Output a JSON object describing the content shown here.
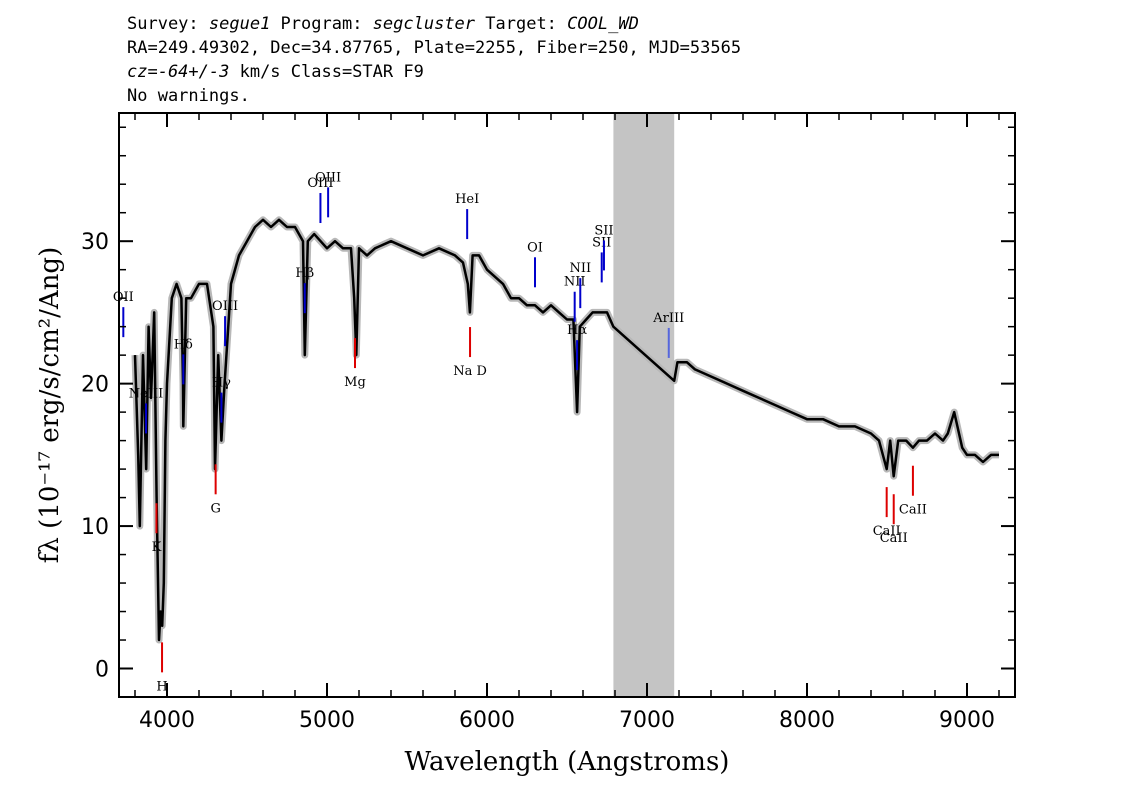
{
  "header": {
    "line1": {
      "survey_label": "Survey: ",
      "survey": "segue1",
      "program_label": " Program: ",
      "program": "segcluster",
      "target_label": " Target: ",
      "target": "COOL_WD"
    },
    "line2": "RA=249.49302, Dec=34.87765, Plate=2255, Fiber=250, MJD=53565",
    "line3": {
      "cz": "cz=-64+/-3",
      "rest": " km/s Class=STAR F9"
    },
    "line4": "No warnings."
  },
  "chart_data": {
    "type": "line",
    "xlabel": "Wavelength (Angstroms)",
    "ylabel": "fλ (10⁻¹⁷ erg/s/cm²/Ang)",
    "xlim": [
      3700,
      9300
    ],
    "ylim": [
      -2,
      39
    ],
    "xticks": [
      4000,
      5000,
      6000,
      7000,
      8000,
      9000
    ],
    "xtick_labels": [
      "4000",
      "5000",
      "6000",
      "7000",
      "8000",
      "9000"
    ],
    "yticks": [
      0,
      10,
      20,
      30
    ],
    "ytick_labels": [
      "0",
      "10",
      "20",
      "30"
    ],
    "masked_region": [
      6790,
      7170
    ],
    "colors": {
      "spectrum": "#000000",
      "noise": "#b8b8b8",
      "mask": "#c4c4c4",
      "emission": "#0000cc",
      "absorption": "#dd0000",
      "arIII": "#5566dd"
    },
    "series": [
      {
        "kind": "spectrum",
        "x": [
          3800,
          3820,
          3830,
          3850,
          3870,
          3885,
          3900,
          3920,
          3935,
          3950,
          3960,
          3970,
          3980,
          3990,
          4000,
          4030,
          4060,
          4090,
          4100,
          4102,
          4120,
          4150,
          4200,
          4250,
          4290,
          4300,
          4320,
          4340,
          4360,
          4400,
          4450,
          4500,
          4550,
          4600,
          4650,
          4700,
          4750,
          4800,
          4850,
          4861,
          4880,
          4920,
          5000,
          5050,
          5100,
          5150,
          5170,
          5183,
          5200,
          5250,
          5300,
          5400,
          5500,
          5600,
          5700,
          5800,
          5850,
          5880,
          5893,
          5910,
          5950,
          6000,
          6050,
          6100,
          6150,
          6200,
          6250,
          6300,
          6350,
          6400,
          6450,
          6500,
          6540,
          6563,
          6580,
          6620,
          6660,
          6700,
          6750,
          6790,
          7170,
          7190,
          7250,
          7300,
          7400,
          7500,
          7600,
          7700,
          7800,
          7900,
          8000,
          8100,
          8200,
          8300,
          8400,
          8450,
          8498,
          8520,
          8542,
          8570,
          8620,
          8662,
          8700,
          8750,
          8800,
          8850,
          8880,
          8920,
          8970,
          9000,
          9050,
          9100,
          9150,
          9200
        ],
        "y": [
          22,
          15,
          10,
          22,
          14,
          24,
          19,
          25,
          12,
          2,
          4,
          3,
          6,
          16,
          20,
          26,
          27,
          26,
          20,
          17,
          26,
          26,
          27,
          27,
          24,
          14,
          22,
          16,
          20,
          27,
          29,
          30,
          31,
          31.5,
          31,
          31.5,
          31,
          31,
          30,
          22,
          30,
          30.5,
          29.5,
          30,
          29.5,
          29.5,
          26,
          22,
          29.5,
          29,
          29.5,
          30,
          29.5,
          29,
          29.5,
          29,
          28.5,
          27,
          25,
          29,
          29,
          28,
          27.5,
          27,
          26,
          26,
          25.5,
          25.5,
          25,
          25.5,
          25,
          24.5,
          24.5,
          18,
          24,
          24.5,
          25,
          25,
          25,
          24,
          20.2,
          21.5,
          21.5,
          21,
          20.5,
          20,
          19.5,
          19,
          18.5,
          18,
          17.5,
          17.5,
          17,
          17,
          16.5,
          16,
          14,
          16,
          13.5,
          16,
          16,
          15.5,
          16,
          16,
          16.5,
          16,
          16.5,
          18,
          15.5,
          15,
          15,
          14.5,
          15,
          15
        ]
      }
    ],
    "emission_lines": [
      {
        "label": "OII",
        "x": 3727
      },
      {
        "label": "NeIII",
        "x": 3869
      },
      {
        "label": "Hδ",
        "x": 4102
      },
      {
        "label": "Hγ",
        "x": 4340
      },
      {
        "label": "OIII",
        "x": 4363
      },
      {
        "label": "Hβ",
        "x": 4861
      },
      {
        "label": "OIII",
        "x": 4959
      },
      {
        "label": "OIII",
        "x": 5007
      },
      {
        "label": "HeI",
        "x": 5876
      },
      {
        "label": "OI",
        "x": 6300
      },
      {
        "label": "NII",
        "x": 6548
      },
      {
        "label": "Hα",
        "x": 6563
      },
      {
        "label": "NII",
        "x": 6583
      },
      {
        "label": "SII",
        "x": 6717
      },
      {
        "label": "SII",
        "x": 6731
      },
      {
        "label": "ArIII",
        "x": 7136
      }
    ],
    "absorption_lines": [
      {
        "label": "K",
        "x": 3934
      },
      {
        "label": "H",
        "x": 3969
      },
      {
        "label": "G",
        "x": 4304
      },
      {
        "label": "Mg",
        "x": 5175
      },
      {
        "label": "Na D",
        "x": 5894
      },
      {
        "label": "CaII",
        "x": 8498
      },
      {
        "label": "CaII",
        "x": 8542
      },
      {
        "label": "CaII",
        "x": 8662
      }
    ]
  }
}
